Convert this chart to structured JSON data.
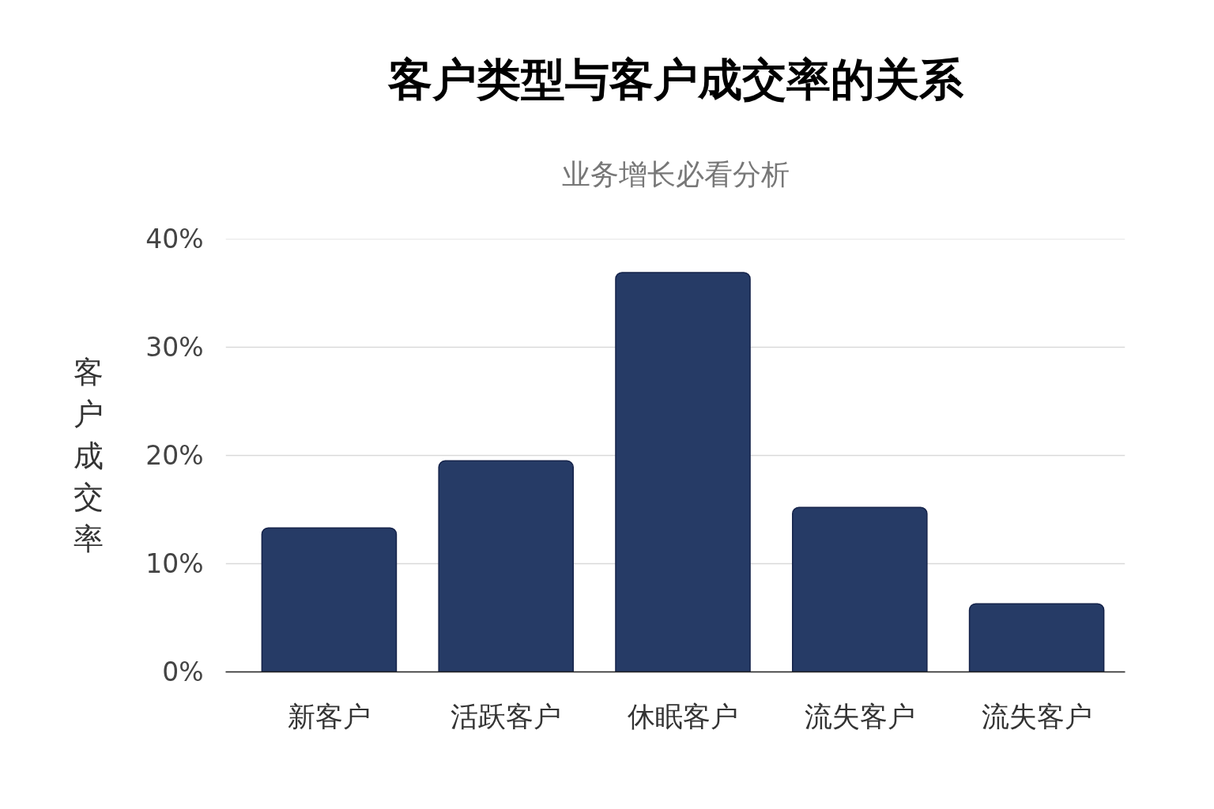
{
  "chart_data": {
    "type": "bar",
    "title": "客户类型与客户成交率的关系",
    "subtitle": "业务增长必看分析",
    "ylabel": "客户成交率",
    "categories": [
      "新客户",
      "活跃客户",
      "休眠客户",
      "流失客户",
      "流失客户"
    ],
    "values": [
      13.3,
      19.5,
      36.9,
      15.2,
      6.3
    ],
    "color": "#263b66",
    "ylim": [
      0,
      40
    ],
    "yticks": [
      {
        "value": 0,
        "label": "0%"
      },
      {
        "value": 10,
        "label": "10%"
      },
      {
        "value": 20,
        "label": "20%"
      },
      {
        "value": 30,
        "label": "30%"
      },
      {
        "value": 40,
        "label": "40%"
      }
    ],
    "grid": "y"
  }
}
